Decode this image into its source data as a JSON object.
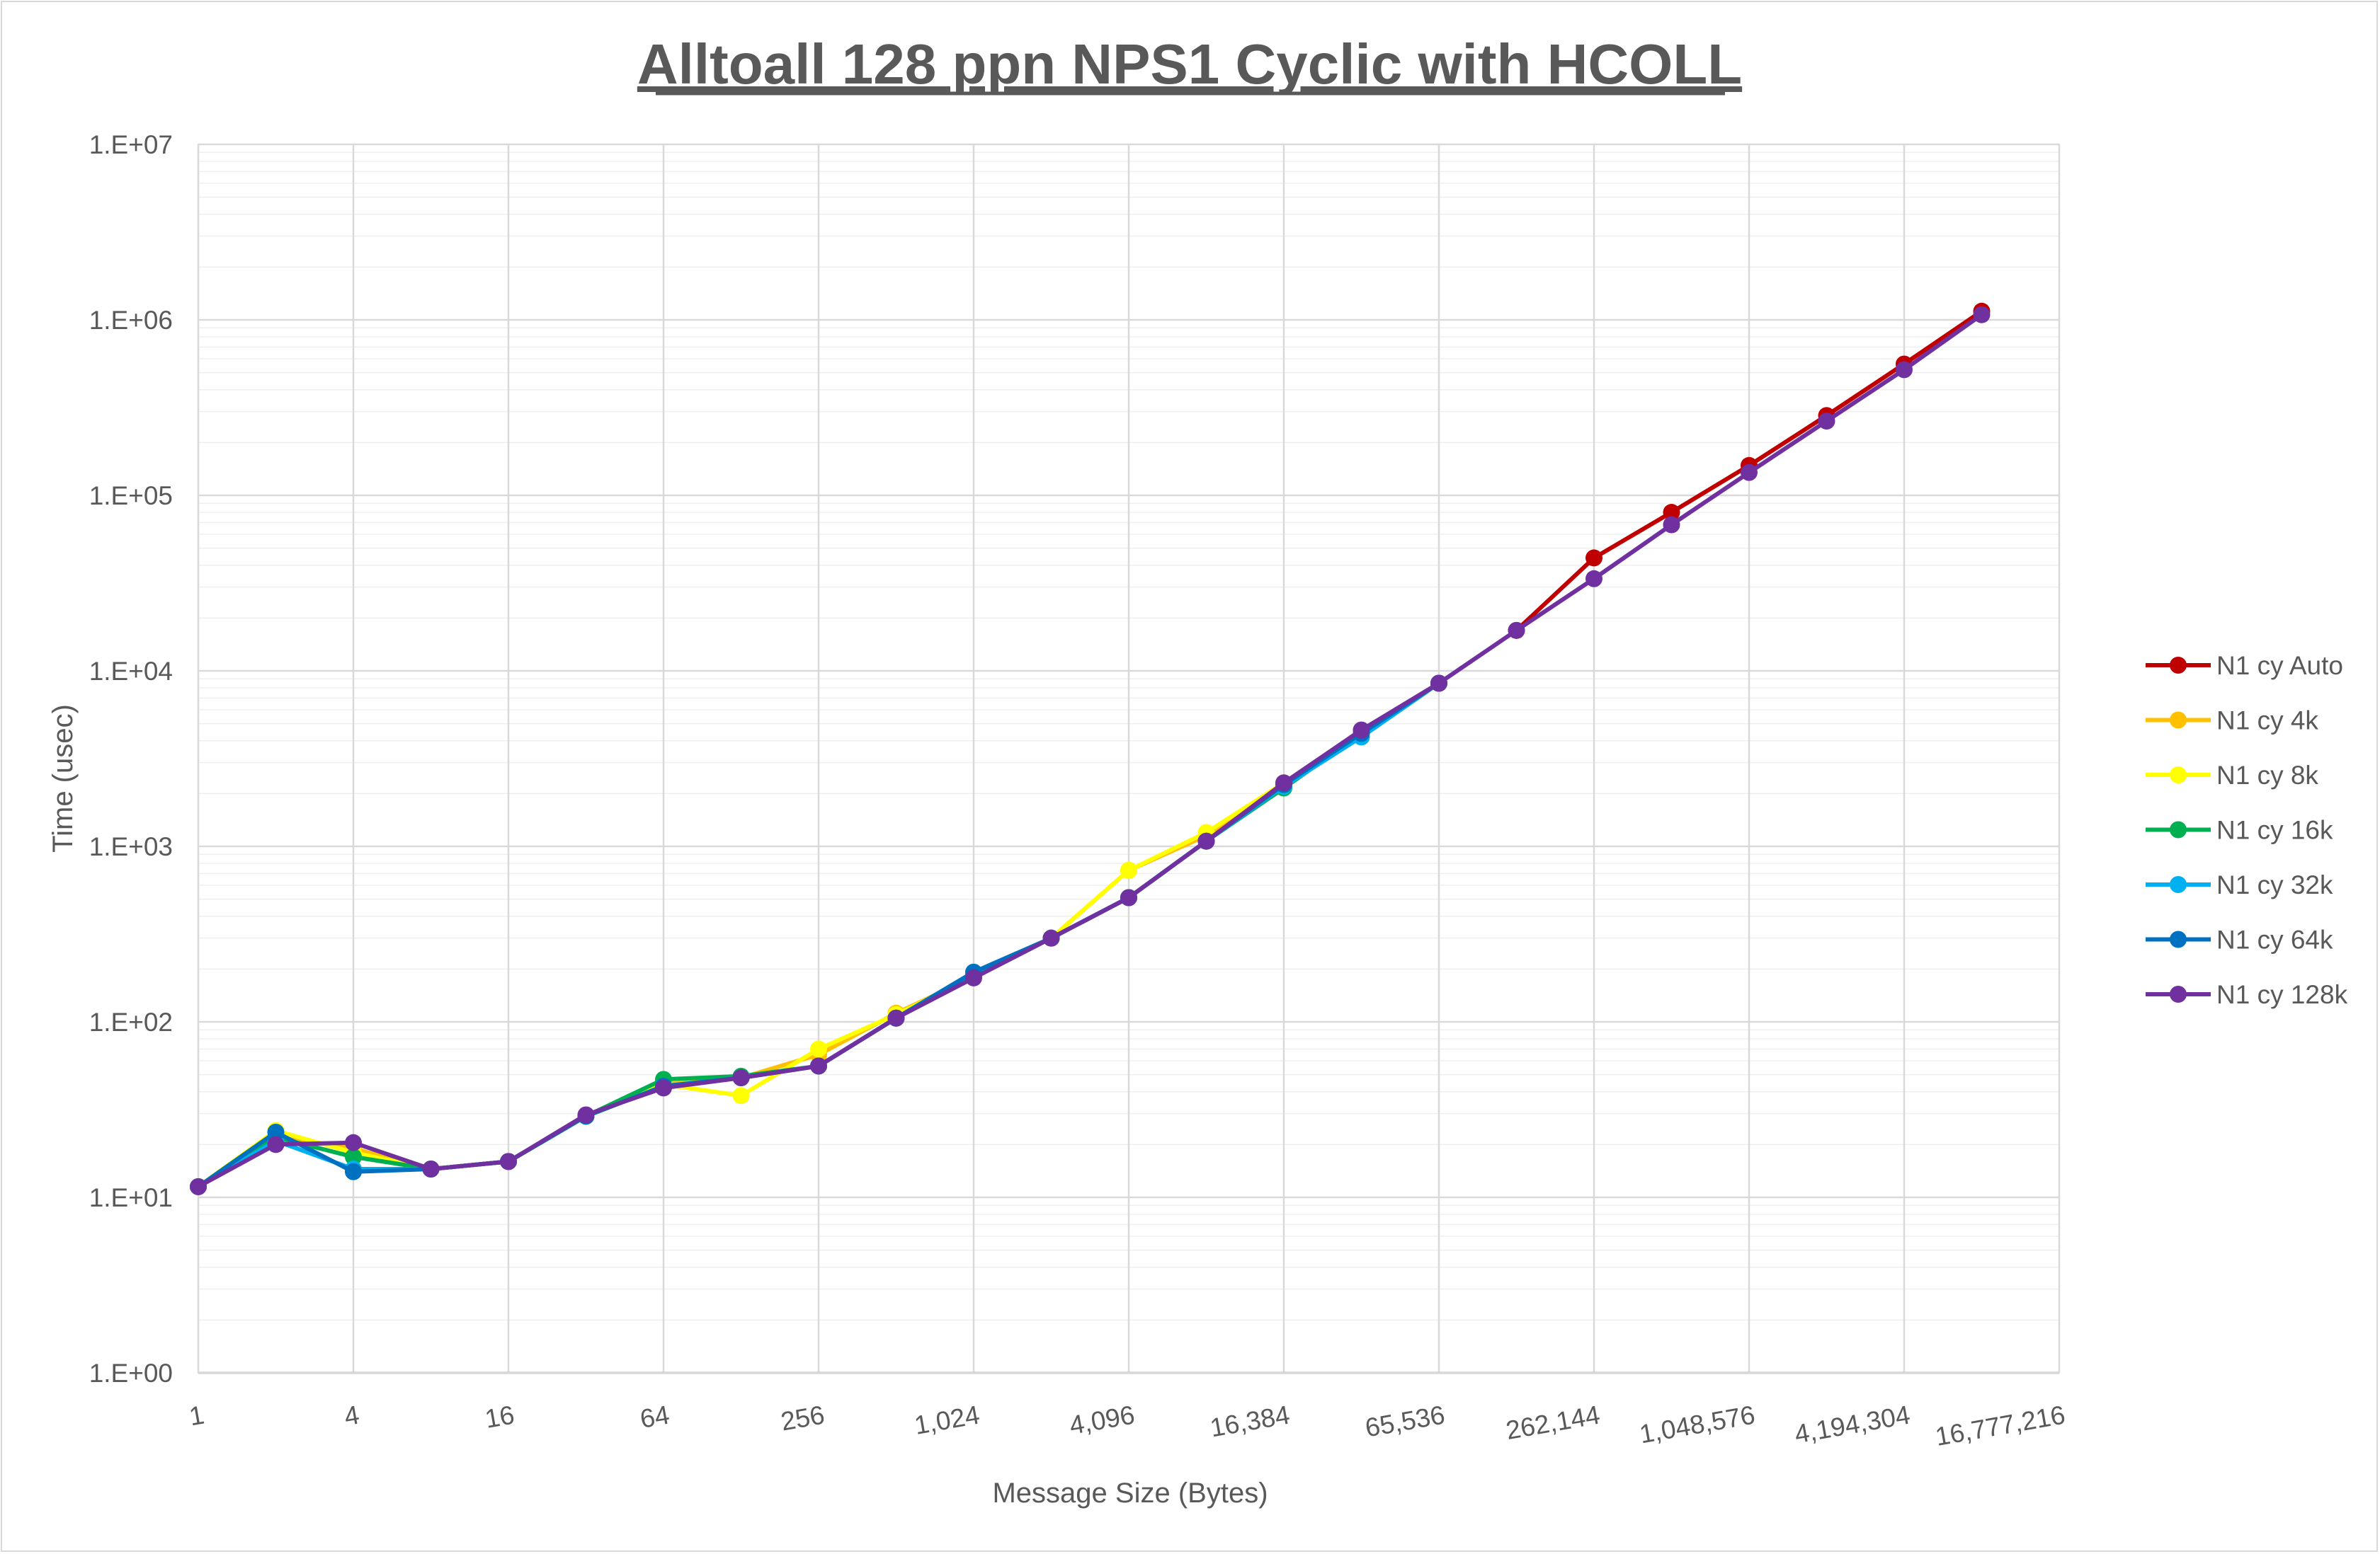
{
  "chart_data": {
    "type": "line",
    "title": "Alltoall 128 ppn NPS1 Cyclic with HCOLL",
    "xlabel": "Message Size (Bytes)",
    "ylabel": "Time (usec)",
    "x_scale": "log2",
    "y_scale": "log10",
    "xlim": [
      1,
      16777216
    ],
    "ylim": [
      1,
      10000000
    ],
    "x_tick_values": [
      1,
      4,
      16,
      64,
      256,
      1024,
      4096,
      16384,
      65536,
      262144,
      1048576,
      4194304,
      16777216
    ],
    "x_tick_labels": [
      "1",
      "4",
      "16",
      "64",
      "256",
      "1,024",
      "4,096",
      "16,384",
      "65,536",
      "262,144",
      "1,048,576",
      "4,194,304",
      "16,777,216"
    ],
    "y_tick_values": [
      1,
      10,
      100,
      1000,
      10000,
      100000,
      1000000,
      10000000
    ],
    "y_tick_labels": [
      "1.E+00",
      "1.E+01",
      "1.E+02",
      "1.E+03",
      "1.E+04",
      "1.E+05",
      "1.E+06",
      "1.E+07"
    ],
    "grid": true,
    "legend_position": "right",
    "x": [
      1,
      2,
      4,
      8,
      16,
      32,
      64,
      128,
      256,
      512,
      1024,
      2048,
      4096,
      8192,
      16384,
      32768,
      65536,
      131072,
      262144,
      524288,
      1048576,
      2097152,
      4194304,
      8388608
    ],
    "series": [
      {
        "name": "N1 cy Auto",
        "color": "#c00000",
        "values": [
          null,
          null,
          null,
          null,
          null,
          null,
          null,
          null,
          null,
          null,
          null,
          null,
          null,
          null,
          null,
          null,
          null,
          17000,
          44000,
          80000,
          148000,
          285000,
          560000,
          1120000
        ]
      },
      {
        "name": "N1 cy 4k",
        "color": "#ffc000",
        "values": [
          11.5,
          22,
          19,
          14.5,
          16,
          29,
          44,
          48,
          65,
          112,
          180,
          300,
          730,
          1150,
          2300,
          4500,
          8500,
          null,
          null,
          null,
          null,
          null,
          null,
          null
        ]
      },
      {
        "name": "N1 cy 8k",
        "color": "#ffff00",
        "values": [
          11.5,
          24,
          18,
          14.5,
          16,
          29,
          44,
          38,
          70,
          110,
          180,
          300,
          730,
          1200,
          2300,
          4500,
          8500,
          null,
          null,
          null,
          null,
          null,
          null,
          null
        ]
      },
      {
        "name": "N1 cy 16k",
        "color": "#00b050",
        "values": [
          11.5,
          22,
          17,
          14.5,
          16,
          29,
          47,
          49,
          56,
          105,
          185,
          300,
          510,
          1070,
          2150,
          4400,
          8500,
          null,
          null,
          null,
          null,
          null,
          null,
          null
        ]
      },
      {
        "name": "N1 cy 32k",
        "color": "#00b0f0",
        "values": [
          11.5,
          21,
          14.5,
          14.5,
          16,
          29,
          43,
          48,
          56,
          105,
          185,
          300,
          510,
          1070,
          2200,
          4200,
          8500,
          null,
          null,
          null,
          null,
          null,
          null,
          null
        ]
      },
      {
        "name": "N1 cy 64k",
        "color": "#0070c0",
        "values": [
          11.5,
          23.5,
          14,
          14.5,
          16,
          29,
          43,
          48,
          56,
          105,
          192,
          300,
          510,
          1070,
          2250,
          4400,
          8500,
          null,
          null,
          null,
          null,
          null,
          null,
          null
        ]
      },
      {
        "name": "N1 cy 128k",
        "color": "#7030a0",
        "values": [
          11.5,
          20,
          20.5,
          14.5,
          16,
          29.5,
          42,
          48,
          56,
          105,
          178,
          300,
          510,
          1070,
          2300,
          4600,
          8500,
          17000,
          33500,
          68000,
          135000,
          265000,
          520000,
          1070000
        ]
      }
    ]
  }
}
